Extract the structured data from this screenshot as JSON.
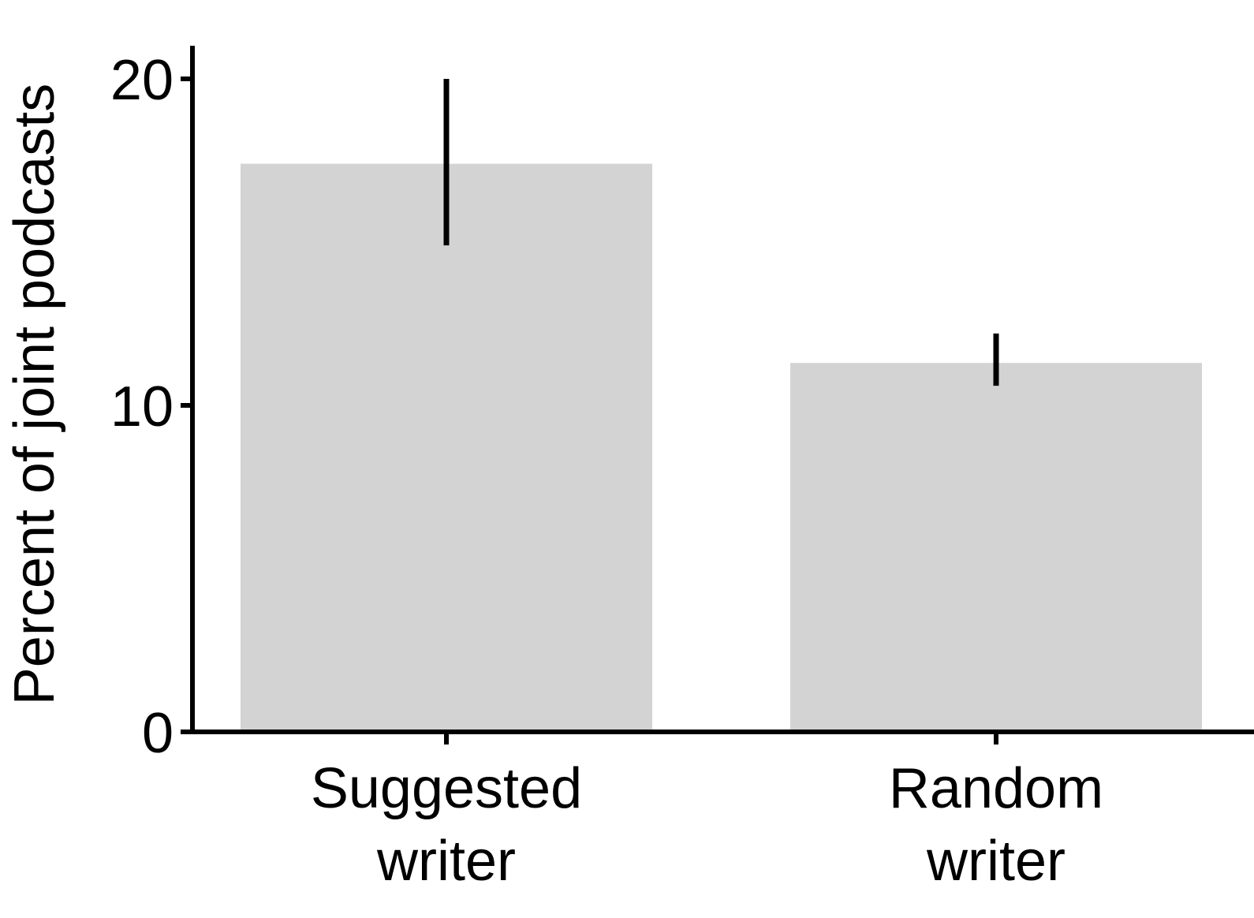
{
  "chart_data": {
    "type": "bar",
    "title": "",
    "xlabel": "",
    "ylabel": "Percent of joint podcasts",
    "categories": [
      [
        "Suggested",
        "writer"
      ],
      [
        "Random",
        "writer"
      ]
    ],
    "values": [
      17.4,
      11.3
    ],
    "error_bars": [
      {
        "low": 14.9,
        "high": 20.0
      },
      {
        "low": 10.6,
        "high": 12.2
      }
    ],
    "ylim": [
      0,
      21
    ],
    "yticks": [
      0,
      10,
      20
    ],
    "ytick_labels": [
      "0",
      "10",
      "20"
    ],
    "grid": false,
    "legend": "none",
    "bar_color": "#d3d3d3",
    "axis_color": "#000000"
  }
}
